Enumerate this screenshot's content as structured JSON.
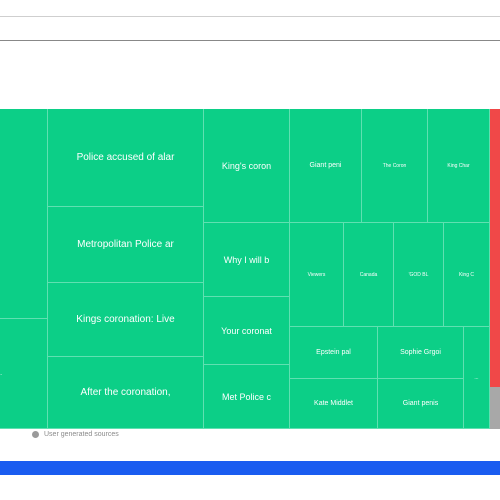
{
  "colors": {
    "tile": "#0ccf87",
    "red_strip": "#f04848",
    "gray_strip": "#a8a8a8",
    "footer_bar": "#1a5cf0"
  },
  "treemap": {
    "tiles": [
      "Police accused of alar",
      "Metropolitan Police ar",
      "Kings coronation: Live",
      "After the coronation,",
      "King's coron",
      "Why I will b",
      "Your coronat",
      "Met Police c",
      "Giant peni",
      "The Coron",
      "King Char",
      "Viewers",
      "Canada",
      "'GOD BL",
      "King C",
      "Epstein pal",
      "Sophie Grgoi",
      "Kate Middlet",
      "Giant penis",
      "...",
      "..."
    ]
  },
  "legend": {
    "label": "User generated sources"
  }
}
